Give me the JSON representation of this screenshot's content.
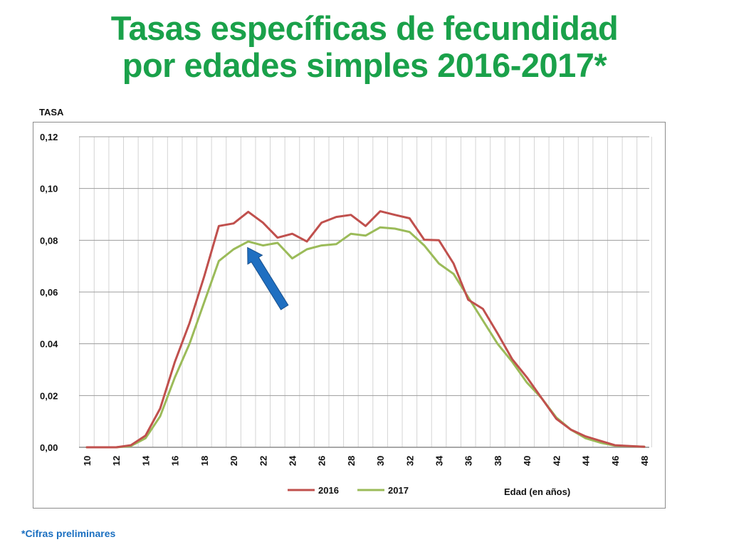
{
  "title": {
    "line1": "Tasas específicas de fecundidad",
    "line2": "por edades simples 2016-2017*"
  },
  "footnote": "*Cifras preliminares",
  "chart_data": {
    "type": "line",
    "ylabel": "TASA",
    "xlabel": "Edad (en años)",
    "ylim": [
      0,
      0.12
    ],
    "xlim": [
      10,
      48
    ],
    "y_ticks": [
      "0,00",
      "0,02",
      "0.04",
      "0,06",
      "0,08",
      "0,10",
      "0,12"
    ],
    "y_tick_values": [
      0,
      0.02,
      0.04,
      0.06,
      0.08,
      0.1,
      0.12
    ],
    "x_ticks": [
      10,
      12,
      14,
      16,
      18,
      20,
      22,
      24,
      26,
      28,
      30,
      32,
      34,
      36,
      38,
      40,
      42,
      44,
      46,
      48
    ],
    "grid": true,
    "legend_position": "bottom",
    "x": [
      10,
      11,
      12,
      13,
      14,
      15,
      16,
      17,
      18,
      19,
      20,
      21,
      22,
      23,
      24,
      25,
      26,
      27,
      28,
      29,
      30,
      31,
      32,
      33,
      34,
      35,
      36,
      37,
      38,
      39,
      40,
      41,
      42,
      43,
      44,
      45,
      46,
      47,
      48
    ],
    "series": [
      {
        "name": "2016",
        "color": "#c0504d",
        "values": [
          0,
          0,
          0,
          0.0008,
          0.0045,
          0.015,
          0.033,
          0.048,
          0.066,
          0.0855,
          0.0865,
          0.091,
          0.0868,
          0.081,
          0.0825,
          0.0795,
          0.0868,
          0.089,
          0.0898,
          0.0855,
          0.0912,
          0.0898,
          0.0885,
          0.0802,
          0.08,
          0.071,
          0.057,
          0.0535,
          0.044,
          0.034,
          0.027,
          0.019,
          0.011,
          0.0068,
          0.0042,
          0.0025,
          0.0008,
          0.0005,
          0.0002
        ]
      },
      {
        "name": "2017",
        "color": "#9bbb59",
        "values": [
          0,
          0,
          0,
          0.0005,
          0.0035,
          0.012,
          0.027,
          0.04,
          0.056,
          0.072,
          0.0765,
          0.0795,
          0.078,
          0.079,
          0.073,
          0.0765,
          0.078,
          0.0785,
          0.0825,
          0.0818,
          0.085,
          0.0845,
          0.0832,
          0.078,
          0.071,
          0.067,
          0.058,
          0.049,
          0.04,
          0.033,
          0.025,
          0.019,
          0.0115,
          0.0068,
          0.0035,
          0.0018,
          0.0006,
          0.0004,
          0.0002
        ]
      }
    ],
    "annotation": {
      "type": "arrow",
      "color": "#1f6fc1",
      "x": 21,
      "y": 0.078
    }
  }
}
